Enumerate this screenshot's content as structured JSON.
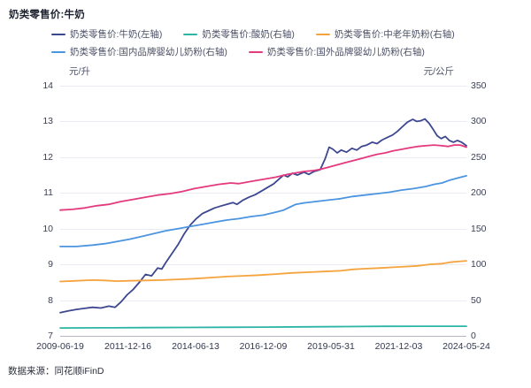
{
  "page": {
    "title": "奶类零售价:牛奶",
    "source": "数据来源：同花顺iFinD"
  },
  "chart_data": {
    "type": "line",
    "title": "奶类零售价:牛奶",
    "grid": true,
    "legend_position": "top",
    "x_axis": {
      "labels": [
        "2009-06-19",
        "2011-12-16",
        "2014-06-13",
        "2016-12-09",
        "2019-05-31",
        "2021-12-03",
        "2024-05-24"
      ]
    },
    "y_axis_left": {
      "unit": "元/升",
      "min": 7,
      "max": 14,
      "ticks": [
        "14",
        "13",
        "12",
        "11",
        "10",
        "9",
        "8",
        "7"
      ]
    },
    "y_axis_right": {
      "unit": "元/公斤",
      "min": 0,
      "max": 350,
      "ticks": [
        "350",
        "300",
        "250",
        "200",
        "150",
        "100",
        "50",
        "0"
      ]
    },
    "series": [
      {
        "name": "奶类零售价:牛奶(左轴)",
        "axis": "left",
        "color": "#3d478f",
        "points": [
          [
            0,
            7.65
          ],
          [
            0.02,
            7.7
          ],
          [
            0.04,
            7.74
          ],
          [
            0.06,
            7.77
          ],
          [
            0.08,
            7.8
          ],
          [
            0.1,
            7.78
          ],
          [
            0.12,
            7.83
          ],
          [
            0.135,
            7.8
          ],
          [
            0.15,
            7.95
          ],
          [
            0.165,
            8.15
          ],
          [
            0.18,
            8.3
          ],
          [
            0.195,
            8.5
          ],
          [
            0.21,
            8.72
          ],
          [
            0.225,
            8.68
          ],
          [
            0.24,
            8.9
          ],
          [
            0.25,
            8.87
          ],
          [
            0.26,
            9.05
          ],
          [
            0.275,
            9.3
          ],
          [
            0.29,
            9.55
          ],
          [
            0.305,
            9.85
          ],
          [
            0.32,
            10.1
          ],
          [
            0.335,
            10.28
          ],
          [
            0.35,
            10.42
          ],
          [
            0.365,
            10.5
          ],
          [
            0.38,
            10.58
          ],
          [
            0.395,
            10.63
          ],
          [
            0.41,
            10.68
          ],
          [
            0.425,
            10.73
          ],
          [
            0.435,
            10.68
          ],
          [
            0.45,
            10.8
          ],
          [
            0.465,
            10.88
          ],
          [
            0.48,
            10.95
          ],
          [
            0.495,
            11.05
          ],
          [
            0.51,
            11.15
          ],
          [
            0.525,
            11.25
          ],
          [
            0.54,
            11.4
          ],
          [
            0.55,
            11.5
          ],
          [
            0.56,
            11.45
          ],
          [
            0.572,
            11.55
          ],
          [
            0.584,
            11.5
          ],
          [
            0.6,
            11.58
          ],
          [
            0.612,
            11.52
          ],
          [
            0.625,
            11.6
          ],
          [
            0.64,
            11.65
          ],
          [
            0.652,
            11.95
          ],
          [
            0.662,
            12.28
          ],
          [
            0.672,
            12.22
          ],
          [
            0.682,
            12.12
          ],
          [
            0.692,
            12.2
          ],
          [
            0.705,
            12.14
          ],
          [
            0.718,
            12.25
          ],
          [
            0.73,
            12.2
          ],
          [
            0.742,
            12.3
          ],
          [
            0.755,
            12.34
          ],
          [
            0.768,
            12.42
          ],
          [
            0.78,
            12.38
          ],
          [
            0.792,
            12.48
          ],
          [
            0.805,
            12.55
          ],
          [
            0.818,
            12.62
          ],
          [
            0.83,
            12.72
          ],
          [
            0.842,
            12.85
          ],
          [
            0.855,
            12.98
          ],
          [
            0.868,
            13.06
          ],
          [
            0.878,
            13.0
          ],
          [
            0.888,
            13.02
          ],
          [
            0.898,
            13.07
          ],
          [
            0.908,
            12.95
          ],
          [
            0.918,
            12.78
          ],
          [
            0.928,
            12.6
          ],
          [
            0.938,
            12.52
          ],
          [
            0.948,
            12.58
          ],
          [
            0.958,
            12.47
          ],
          [
            0.968,
            12.42
          ],
          [
            0.978,
            12.47
          ],
          [
            0.988,
            12.42
          ],
          [
            1,
            12.32
          ]
        ]
      },
      {
        "name": "奶类零售价:酸奶(右轴)",
        "axis": "right",
        "color": "#2cb5a5",
        "points": [
          [
            0,
            11
          ],
          [
            0.1,
            11.2
          ],
          [
            0.2,
            11.5
          ],
          [
            0.3,
            11.8
          ],
          [
            0.4,
            12.0
          ],
          [
            0.5,
            12.3
          ],
          [
            0.6,
            12.6
          ],
          [
            0.7,
            13.0
          ],
          [
            0.8,
            13.3
          ],
          [
            0.9,
            13.5
          ],
          [
            1,
            13.5
          ]
        ]
      },
      {
        "name": "奶类零售价:中老年奶粉(右轴)",
        "axis": "right",
        "color": "#f5a33c",
        "points": [
          [
            0,
            76
          ],
          [
            0.04,
            77
          ],
          [
            0.08,
            78
          ],
          [
            0.11,
            77.5
          ],
          [
            0.14,
            76.5
          ],
          [
            0.17,
            77
          ],
          [
            0.21,
            77.5
          ],
          [
            0.25,
            78
          ],
          [
            0.29,
            79
          ],
          [
            0.33,
            80
          ],
          [
            0.37,
            81.5
          ],
          [
            0.41,
            83
          ],
          [
            0.45,
            84
          ],
          [
            0.49,
            85
          ],
          [
            0.53,
            86.5
          ],
          [
            0.57,
            88
          ],
          [
            0.61,
            89
          ],
          [
            0.65,
            90
          ],
          [
            0.69,
            91
          ],
          [
            0.72,
            93
          ],
          [
            0.75,
            94
          ],
          [
            0.79,
            95
          ],
          [
            0.82,
            96
          ],
          [
            0.85,
            97
          ],
          [
            0.88,
            98
          ],
          [
            0.91,
            100
          ],
          [
            0.94,
            101
          ],
          [
            0.96,
            103
          ],
          [
            0.98,
            104
          ],
          [
            1,
            105
          ]
        ]
      },
      {
        "name": "奶类零售价:国内品牌婴幼儿奶粉(右轴)",
        "axis": "right",
        "color": "#4b94e0",
        "points": [
          [
            0,
            125
          ],
          [
            0.04,
            125
          ],
          [
            0.08,
            127
          ],
          [
            0.11,
            129
          ],
          [
            0.14,
            132
          ],
          [
            0.17,
            135
          ],
          [
            0.2,
            139
          ],
          [
            0.23,
            143
          ],
          [
            0.26,
            147
          ],
          [
            0.29,
            150
          ],
          [
            0.32,
            153
          ],
          [
            0.35,
            156
          ],
          [
            0.38,
            159
          ],
          [
            0.41,
            162
          ],
          [
            0.44,
            164
          ],
          [
            0.47,
            167
          ],
          [
            0.5,
            169
          ],
          [
            0.53,
            173
          ],
          [
            0.55,
            176
          ],
          [
            0.565,
            180
          ],
          [
            0.58,
            184
          ],
          [
            0.6,
            186
          ],
          [
            0.63,
            188
          ],
          [
            0.66,
            190
          ],
          [
            0.69,
            192
          ],
          [
            0.72,
            195
          ],
          [
            0.75,
            197
          ],
          [
            0.78,
            199
          ],
          [
            0.81,
            201
          ],
          [
            0.84,
            204
          ],
          [
            0.87,
            206
          ],
          [
            0.9,
            209
          ],
          [
            0.92,
            212
          ],
          [
            0.94,
            214
          ],
          [
            0.96,
            218
          ],
          [
            0.98,
            221
          ],
          [
            1,
            224
          ]
        ]
      },
      {
        "name": "奶类零售价:国外品牌婴幼儿奶粉(右轴)",
        "axis": "right",
        "color": "#e5397e",
        "points": [
          [
            0,
            176
          ],
          [
            0.03,
            177
          ],
          [
            0.06,
            179
          ],
          [
            0.09,
            182
          ],
          [
            0.12,
            184
          ],
          [
            0.15,
            188
          ],
          [
            0.18,
            191
          ],
          [
            0.21,
            194
          ],
          [
            0.24,
            197
          ],
          [
            0.27,
            199
          ],
          [
            0.3,
            202
          ],
          [
            0.33,
            206
          ],
          [
            0.36,
            209
          ],
          [
            0.39,
            212
          ],
          [
            0.42,
            214
          ],
          [
            0.44,
            213
          ],
          [
            0.47,
            216
          ],
          [
            0.5,
            219
          ],
          [
            0.53,
            222
          ],
          [
            0.56,
            226
          ],
          [
            0.58,
            228
          ],
          [
            0.6,
            230
          ],
          [
            0.62,
            231
          ],
          [
            0.64,
            233
          ],
          [
            0.66,
            236
          ],
          [
            0.68,
            239
          ],
          [
            0.7,
            242
          ],
          [
            0.72,
            245
          ],
          [
            0.74,
            248
          ],
          [
            0.76,
            251
          ],
          [
            0.78,
            254
          ],
          [
            0.8,
            256
          ],
          [
            0.82,
            259
          ],
          [
            0.84,
            261
          ],
          [
            0.86,
            263
          ],
          [
            0.88,
            265
          ],
          [
            0.9,
            266
          ],
          [
            0.92,
            267
          ],
          [
            0.94,
            266
          ],
          [
            0.955,
            265
          ],
          [
            0.97,
            267
          ],
          [
            0.985,
            267
          ],
          [
            1,
            264
          ]
        ]
      }
    ]
  }
}
